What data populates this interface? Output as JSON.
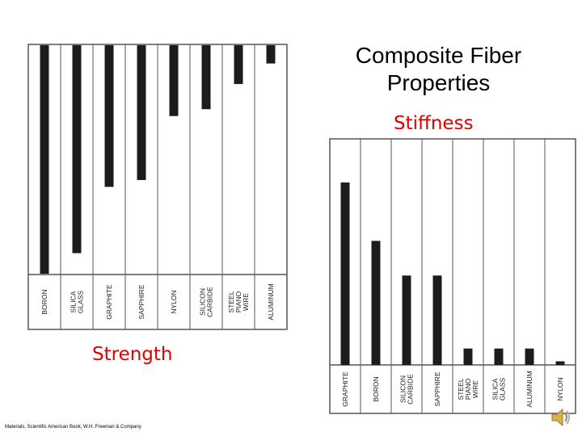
{
  "slide": {
    "title_line1": "Composite Fiber",
    "title_line2": "Properties",
    "credit": "Materials, Scientific American Book, W.H. Freeman & Company"
  },
  "colors": {
    "bar": "#1c1c1c",
    "grid": "#555555",
    "label_accent": "#e00000"
  },
  "icons": [
    "speaker-icon"
  ],
  "chart_data": [
    {
      "type": "bar",
      "title": "Strength",
      "orientation": "vertical-from-top",
      "categories": [
        "BORON",
        "SILICA\nGLASS",
        "GRAPHITE",
        "SAPPHIRE",
        "NYLON",
        "SILICON\nCARBIDE",
        "STEEL\nPIANO\nWIRE",
        "ALUMINUM"
      ],
      "values": [
        1.0,
        0.91,
        0.62,
        0.59,
        0.31,
        0.28,
        0.17,
        0.08
      ],
      "ylim": [
        0,
        1
      ],
      "grid": false
    },
    {
      "type": "bar",
      "title": "Stiffness",
      "orientation": "vertical-from-bottom",
      "categories": [
        "GRAPHITE",
        "BORON",
        "SILICON\nCARBIDE",
        "SAPPHIRE",
        "STEEL\nPIANO\nWIRE",
        "SILICA\nGLASS",
        "ALUMINUM",
        "NYLON"
      ],
      "values": [
        1.0,
        0.68,
        0.49,
        0.49,
        0.09,
        0.09,
        0.09,
        0.02
      ],
      "ylim": [
        0,
        1
      ],
      "grid": false
    }
  ]
}
